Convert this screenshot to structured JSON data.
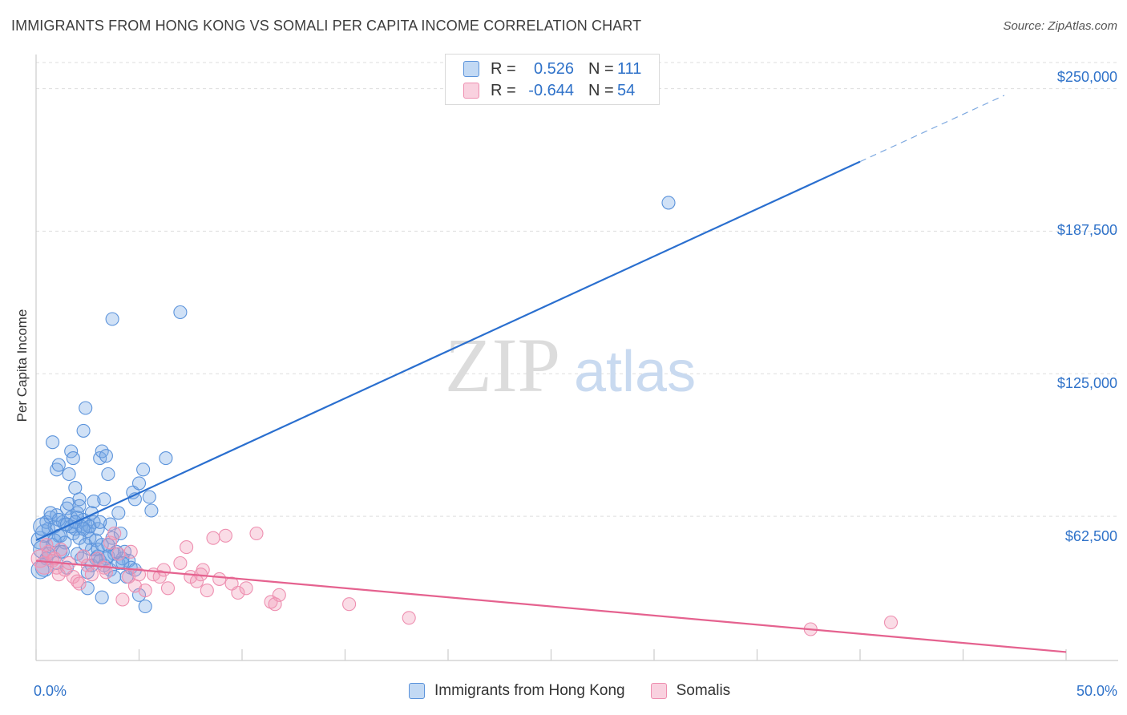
{
  "chart_data": {
    "type": "scatter",
    "title": "IMMIGRANTS FROM HONG KONG VS SOMALI PER CAPITA INCOME CORRELATION CHART",
    "source": "Source: ZipAtlas.com",
    "ylabel": "Per Capita Income",
    "xlim": [
      0,
      50
    ],
    "ylim": [
      0,
      262500
    ],
    "x_tick_labels": [
      "0.0%",
      "50.0%"
    ],
    "y_ticks": [
      {
        "value": 62500,
        "label": "$62,500"
      },
      {
        "value": 125000,
        "label": "$125,000"
      },
      {
        "value": 187500,
        "label": "$187,500"
      },
      {
        "value": 250000,
        "label": "$250,000"
      }
    ],
    "watermark": "ZIPatlas",
    "legend": {
      "r_label": "R =",
      "n_label": "N =",
      "entries": [
        {
          "name": "Immigrants from Hong Kong",
          "r": "0.526",
          "n": "111",
          "color": "#6ea6e8"
        },
        {
          "name": "Somalis",
          "r": "-0.644",
          "n": "54",
          "color": "#f29ab8"
        }
      ]
    },
    "series": [
      {
        "name": "Immigrants from Hong Kong",
        "fill": "rgba(120,170,230,0.35)",
        "stroke": "#5b93db",
        "trend": {
          "x0": 0,
          "y0": 52000,
          "x1": 40,
          "y1": 218000,
          "dash_to_x": 47,
          "color": "#2a6fcf"
        },
        "points": [
          [
            0.2,
            52000
          ],
          [
            0.3,
            48000
          ],
          [
            0.4,
            55000
          ],
          [
            0.5,
            60000
          ],
          [
            0.5,
            44000
          ],
          [
            0.6,
            57000
          ],
          [
            0.7,
            62000
          ],
          [
            0.8,
            50000
          ],
          [
            0.9,
            58000
          ],
          [
            1.0,
            63000
          ],
          [
            1.1,
            54000
          ],
          [
            1.2,
            47000
          ],
          [
            1.3,
            60000
          ],
          [
            1.4,
            59000
          ],
          [
            1.5,
            66000
          ],
          [
            1.6,
            68000
          ],
          [
            1.7,
            62000
          ],
          [
            1.8,
            55000
          ],
          [
            1.9,
            57000
          ],
          [
            2.0,
            64000
          ],
          [
            2.1,
            70000
          ],
          [
            2.2,
            58000
          ],
          [
            2.3,
            61000
          ],
          [
            2.4,
            59000
          ],
          [
            2.5,
            56000
          ],
          [
            2.6,
            53000
          ],
          [
            2.7,
            48000
          ],
          [
            2.8,
            60000
          ],
          [
            2.9,
            52000
          ],
          [
            3.0,
            57000
          ],
          [
            0.8,
            95000
          ],
          [
            1.0,
            83000
          ],
          [
            1.1,
            85000
          ],
          [
            1.6,
            81000
          ],
          [
            1.7,
            91000
          ],
          [
            1.8,
            88000
          ],
          [
            1.9,
            75000
          ],
          [
            2.0,
            62000
          ],
          [
            2.1,
            67000
          ],
          [
            2.3,
            100000
          ],
          [
            2.4,
            110000
          ],
          [
            2.6,
            58000
          ],
          [
            2.8,
            69000
          ],
          [
            3.0,
            45000
          ],
          [
            3.1,
            88000
          ],
          [
            3.2,
            91000
          ],
          [
            3.3,
            70000
          ],
          [
            3.4,
            89000
          ],
          [
            3.5,
            81000
          ],
          [
            3.6,
            59000
          ],
          [
            3.7,
            53000
          ],
          [
            3.8,
            46000
          ],
          [
            4.0,
            64000
          ],
          [
            4.1,
            55000
          ],
          [
            4.3,
            47000
          ],
          [
            4.5,
            43000
          ],
          [
            4.7,
            73000
          ],
          [
            4.8,
            70000
          ],
          [
            5.0,
            77000
          ],
          [
            5.2,
            83000
          ],
          [
            5.5,
            71000
          ],
          [
            5.6,
            65000
          ],
          [
            6.3,
            88000
          ],
          [
            3.7,
            149000
          ],
          [
            7.0,
            152000
          ],
          [
            30.7,
            200000
          ],
          [
            1.0,
            42000
          ],
          [
            1.5,
            40000
          ],
          [
            2.0,
            46000
          ],
          [
            2.2,
            44000
          ],
          [
            2.5,
            38000
          ],
          [
            2.7,
            41000
          ],
          [
            3.0,
            48000
          ],
          [
            3.2,
            50000
          ],
          [
            3.4,
            44000
          ],
          [
            3.6,
            39000
          ],
          [
            3.8,
            36000
          ],
          [
            4.0,
            42000
          ],
          [
            4.2,
            44000
          ],
          [
            4.4,
            36000
          ],
          [
            4.6,
            40000
          ],
          [
            4.8,
            39000
          ],
          [
            5.0,
            28000
          ],
          [
            5.3,
            23000
          ],
          [
            2.5,
            31000
          ],
          [
            3.2,
            27000
          ],
          [
            1.2,
            54000
          ],
          [
            1.4,
            51000
          ],
          [
            0.4,
            40000
          ],
          [
            0.2,
            39000
          ],
          [
            0.6,
            46000
          ],
          [
            0.9,
            52000
          ],
          [
            1.3,
            47000
          ],
          [
            1.7,
            58000
          ],
          [
            2.1,
            53000
          ],
          [
            2.4,
            50000
          ],
          [
            2.9,
            44000
          ],
          [
            3.1,
            43000
          ],
          [
            3.3,
            41000
          ],
          [
            3.5,
            45000
          ],
          [
            3.9,
            47000
          ],
          [
            4.2,
            42000
          ],
          [
            0.3,
            58000
          ],
          [
            0.7,
            64000
          ],
          [
            1.1,
            61000
          ],
          [
            1.5,
            59000
          ],
          [
            1.9,
            60000
          ],
          [
            2.3,
            57000
          ],
          [
            2.7,
            64000
          ],
          [
            3.1,
            60000
          ],
          [
            3.5,
            50000
          ]
        ]
      },
      {
        "name": "Somalis",
        "fill": "rgba(242,154,184,0.35)",
        "stroke": "#ee8fb0",
        "trend": {
          "x0": 0,
          "y0": 43000,
          "x1": 50,
          "y1": 3000,
          "color": "#e5628f"
        },
        "points": [
          [
            0.2,
            44000
          ],
          [
            0.4,
            41000
          ],
          [
            0.6,
            47000
          ],
          [
            0.8,
            43000
          ],
          [
            1.0,
            40000
          ],
          [
            1.2,
            48000
          ],
          [
            1.4,
            39000
          ],
          [
            1.6,
            42000
          ],
          [
            1.8,
            36000
          ],
          [
            2.0,
            34000
          ],
          [
            2.3,
            45000
          ],
          [
            2.5,
            41000
          ],
          [
            2.7,
            37000
          ],
          [
            3.0,
            44000
          ],
          [
            3.3,
            40000
          ],
          [
            3.6,
            51000
          ],
          [
            3.8,
            55000
          ],
          [
            4.0,
            46000
          ],
          [
            4.2,
            26000
          ],
          [
            4.5,
            36000
          ],
          [
            4.8,
            32000
          ],
          [
            5.0,
            37000
          ],
          [
            5.3,
            30000
          ],
          [
            5.7,
            37000
          ],
          [
            6.0,
            36000
          ],
          [
            6.4,
            31000
          ],
          [
            7.0,
            42000
          ],
          [
            7.3,
            49000
          ],
          [
            7.5,
            36000
          ],
          [
            7.8,
            34000
          ],
          [
            8.1,
            39000
          ],
          [
            8.3,
            30000
          ],
          [
            8.6,
            53000
          ],
          [
            8.9,
            35000
          ],
          [
            9.2,
            54000
          ],
          [
            9.5,
            33000
          ],
          [
            9.8,
            29000
          ],
          [
            10.2,
            31000
          ],
          [
            10.7,
            55000
          ],
          [
            11.4,
            25000
          ],
          [
            11.8,
            28000
          ],
          [
            15.2,
            24000
          ],
          [
            18.1,
            18000
          ],
          [
            0.5,
            50000
          ],
          [
            1.1,
            37000
          ],
          [
            2.1,
            33000
          ],
          [
            3.4,
            38000
          ],
          [
            4.6,
            47000
          ],
          [
            6.2,
            39000
          ],
          [
            8.0,
            37000
          ],
          [
            11.6,
            24000
          ],
          [
            37.6,
            13000
          ],
          [
            41.5,
            16000
          ],
          [
            0.9,
            44000
          ]
        ]
      }
    ]
  }
}
